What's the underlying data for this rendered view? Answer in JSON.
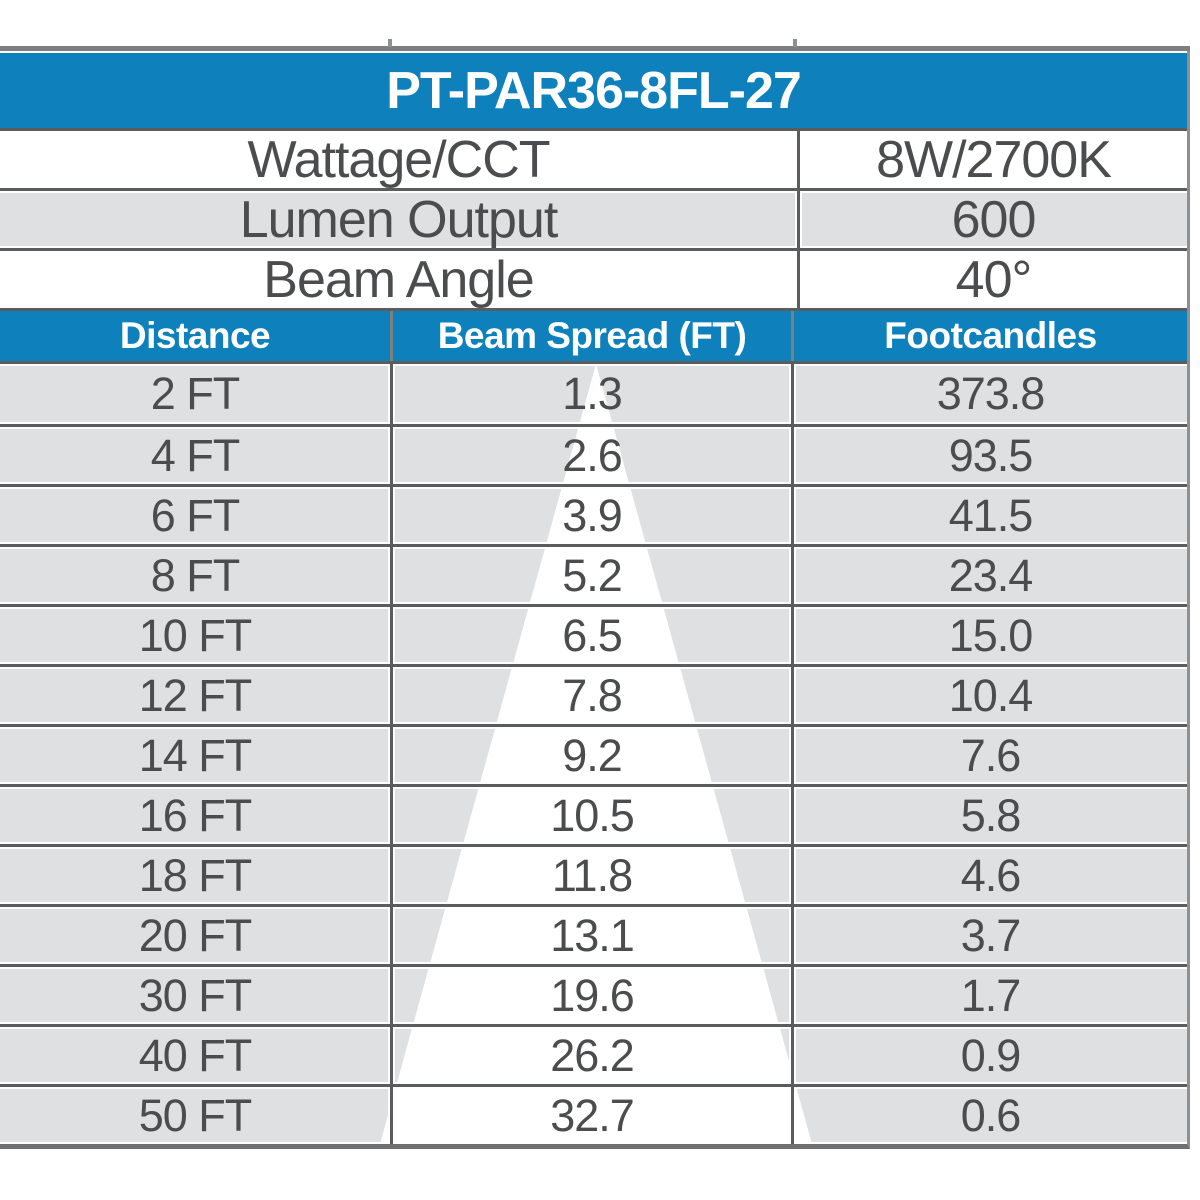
{
  "title": "PT-PAR36-8FL-27",
  "specs": [
    {
      "label": "Wattage/CCT",
      "value": "8W/2700K"
    },
    {
      "label": "Lumen Output",
      "value": "600"
    },
    {
      "label": "Beam Angle",
      "value": "40°"
    }
  ],
  "table": {
    "headers": [
      "Distance",
      "Beam Spread (FT)",
      "Footcandles"
    ],
    "rows": [
      {
        "distance": "2 FT",
        "beam_spread": "1.3",
        "footcandles": "373.8"
      },
      {
        "distance": "4 FT",
        "beam_spread": "2.6",
        "footcandles": "93.5"
      },
      {
        "distance": "6 FT",
        "beam_spread": "3.9",
        "footcandles": "41.5"
      },
      {
        "distance": "8 FT",
        "beam_spread": "5.2",
        "footcandles": "23.4"
      },
      {
        "distance": "10 FT",
        "beam_spread": "6.5",
        "footcandles": "15.0"
      },
      {
        "distance": "12 FT",
        "beam_spread": "7.8",
        "footcandles": "10.4"
      },
      {
        "distance": "14 FT",
        "beam_spread": "9.2",
        "footcandles": "7.6"
      },
      {
        "distance": "16 FT",
        "beam_spread": "10.5",
        "footcandles": "5.8"
      },
      {
        "distance": "18 FT",
        "beam_spread": "11.8",
        "footcandles": "4.6"
      },
      {
        "distance": "20 FT",
        "beam_spread": "13.1",
        "footcandles": "3.7"
      },
      {
        "distance": "30 FT",
        "beam_spread": "19.6",
        "footcandles": "1.7"
      },
      {
        "distance": "40 FT",
        "beam_spread": "26.2",
        "footcandles": "0.9"
      },
      {
        "distance": "50 FT",
        "beam_spread": "32.7",
        "footcandles": "0.6"
      }
    ]
  },
  "colors": {
    "accent_blue": "#0e81bd",
    "row_gray": "#dfe0e1",
    "grid_dark": "#5b5c5e",
    "text_dark": "#4b4c4e",
    "header_text": "#ffffff"
  }
}
